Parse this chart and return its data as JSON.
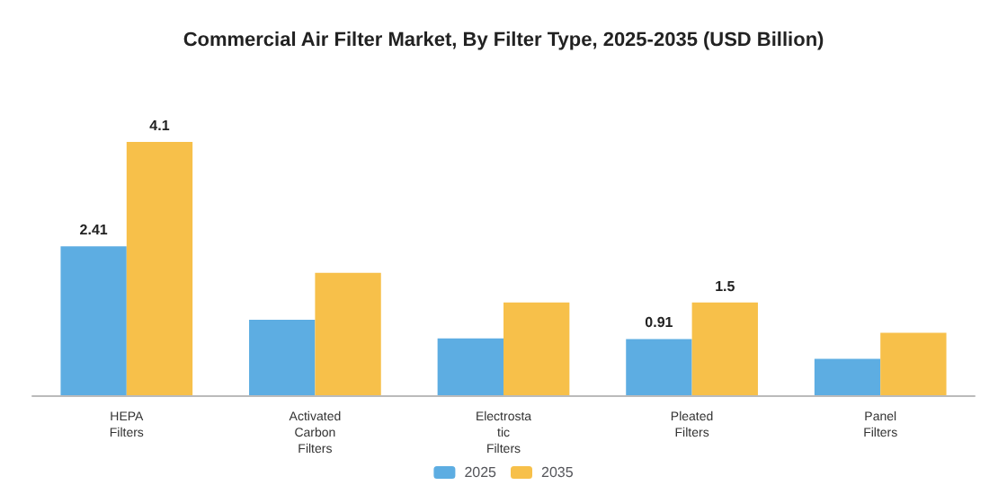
{
  "chart_data": {
    "type": "bar",
    "title": "Commercial Air Filter Market, By Filter Type, 2025-2035 (USD Billion)",
    "categories": [
      "HEPA\nFilters",
      "Activated\nCarbon\nFilters",
      "Electrosta\ntic\nFilters",
      "Pleated\nFilters",
      "Panel\nFilters"
    ],
    "series": [
      {
        "name": "2025",
        "color": "#5dade2",
        "values": [
          2.41,
          1.22,
          0.92,
          0.91,
          0.59
        ],
        "value_labels": [
          "2.41",
          null,
          null,
          "0.91",
          null
        ]
      },
      {
        "name": "2035",
        "color": "#f7c04a",
        "values": [
          4.1,
          1.98,
          1.5,
          1.5,
          1.01
        ],
        "value_labels": [
          "4.1",
          null,
          null,
          "1.5",
          null
        ]
      }
    ],
    "legend": "bottom"
  }
}
